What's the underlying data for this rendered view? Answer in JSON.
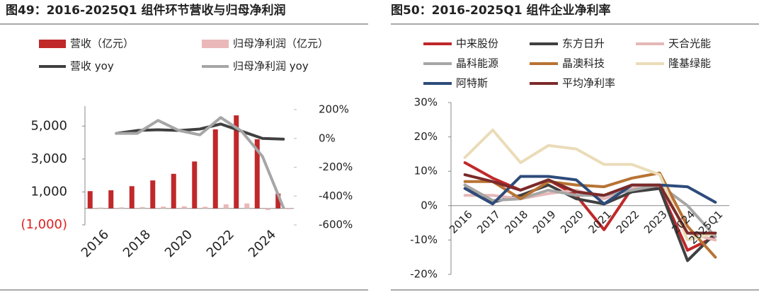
{
  "chart_data": [
    {
      "type": "bar",
      "title": "图49：2016-2025Q1 组件环节营收与归母净利润",
      "categories": [
        "2016",
        null,
        "2018",
        null,
        "2020",
        null,
        "2022",
        null,
        "2024",
        null
      ],
      "ylim": [
        -1000,
        6000
      ],
      "yticks": [
        {
          "value": -1000,
          "label": "(1,000)",
          "color": "#e02020"
        },
        {
          "value": 1000,
          "label": "1,000"
        },
        {
          "value": 3000,
          "label": "3,000"
        },
        {
          "value": 5000,
          "label": "5,000"
        }
      ],
      "y2lim": [
        -600,
        200
      ],
      "y2ticks": [
        {
          "value": -600,
          "label": "-600%"
        },
        {
          "value": -400,
          "label": "-400%"
        },
        {
          "value": -200,
          "label": "-200%"
        },
        {
          "value": 0,
          "label": "0%"
        },
        {
          "value": 200,
          "label": "200%"
        }
      ],
      "series": [
        {
          "name": "营收（亿元）",
          "type": "bar",
          "color": "#c0282a",
          "values": [
            1050,
            1100,
            1350,
            1700,
            2100,
            2850,
            4800,
            5650,
            4200,
            900
          ]
        },
        {
          "name": "归母净利润（亿元）",
          "type": "bar",
          "color": "#eab8b8",
          "values": [
            50,
            60,
            80,
            110,
            130,
            100,
            250,
            300,
            -100,
            -50
          ]
        },
        {
          "name": "营收 yoy",
          "type": "line",
          "axis": "y2",
          "color": "#404040",
          "values": [
            null,
            35,
            55,
            60,
            55,
            65,
            100,
            50,
            0,
            -5
          ]
        },
        {
          "name": "归母净利润 yoy",
          "type": "line",
          "axis": "y2",
          "color": "#a6a6a6",
          "values": [
            null,
            35,
            35,
            125,
            55,
            25,
            145,
            50,
            -125,
            -480
          ]
        }
      ]
    },
    {
      "type": "line",
      "title": "图50：2016-2025Q1 组件企业净利率",
      "categories": [
        "2016",
        "2017",
        "2018",
        "2019",
        "2020",
        "2021",
        "2022",
        "2023",
        "2024",
        "2025Q1"
      ],
      "ylim": [
        -20,
        30
      ],
      "yticks": [
        {
          "value": -20,
          "label": "-20%"
        },
        {
          "value": -10,
          "label": "-10%"
        },
        {
          "value": 0,
          "label": "0%"
        },
        {
          "value": 10,
          "label": "10%"
        },
        {
          "value": 20,
          "label": "20%"
        },
        {
          "value": 30,
          "label": "30%"
        }
      ],
      "series": [
        {
          "name": "中来股份",
          "color": "#c0282a",
          "values": [
            12.5,
            8,
            4.5,
            7.5,
            3,
            -7,
            5,
            5,
            -13,
            -9
          ]
        },
        {
          "name": "东方日升",
          "color": "#404040",
          "values": [
            6,
            1,
            3,
            6,
            2,
            0.5,
            4,
            5,
            -16,
            -8
          ]
        },
        {
          "name": "天合光能",
          "color": "#e6b8b8",
          "values": [
            3,
            3,
            2,
            3.5,
            4.5,
            2,
            5,
            6,
            -8,
            -10
          ]
        },
        {
          "name": "晶科能源",
          "color": "#a6a6a6",
          "values": [
            6,
            1.5,
            2,
            4.5,
            3,
            3,
            4.5,
            6,
            0,
            -9
          ]
        },
        {
          "name": "晶澳科技",
          "color": "#b87333",
          "values": [
            7,
            7,
            2,
            7,
            6,
            5.5,
            8,
            9.5,
            -6,
            -15
          ]
        },
        {
          "name": "隆基绿能",
          "color": "#eadcb8",
          "values": [
            14,
            22,
            12.5,
            17.5,
            16.5,
            12,
            12,
            9,
            -10,
            -8
          ]
        },
        {
          "name": "阿特斯",
          "color": "#2e4b7a",
          "values": [
            5,
            0.5,
            8.5,
            8.5,
            7.5,
            0.5,
            6,
            6,
            5.5,
            1
          ]
        },
        {
          "name": "平均净利率",
          "color": "#7b2a2a",
          "values": [
            9,
            7,
            4.5,
            7.5,
            4,
            3,
            6,
            6,
            -8,
            -8
          ]
        }
      ]
    }
  ]
}
